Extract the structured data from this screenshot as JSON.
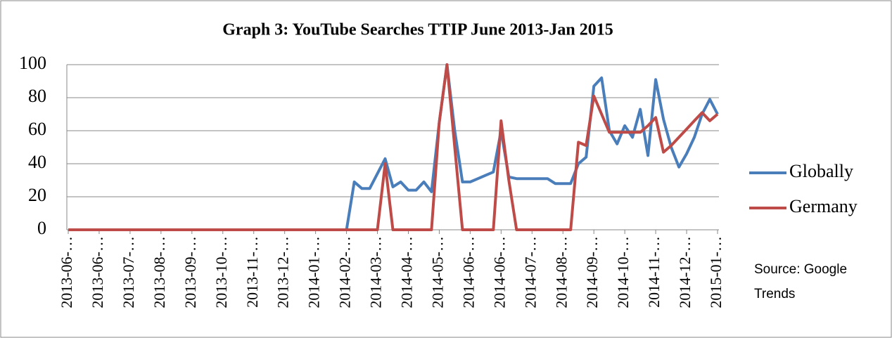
{
  "chart_data": {
    "type": "line",
    "title": "Graph 3: YouTube Searches TTIP June 2013-Jan 2015",
    "source": "Source: Google Trends",
    "categories": [
      "2013-06-…",
      null,
      null,
      null,
      "2013-06-…",
      null,
      null,
      null,
      "2013-07-…",
      null,
      null,
      null,
      "2013-08-…",
      null,
      null,
      null,
      "2013-09-…",
      null,
      null,
      null,
      "2013-10-…",
      null,
      null,
      null,
      "2013-11-…",
      null,
      null,
      null,
      "2013-12-…",
      null,
      null,
      null,
      "2014-01-…",
      null,
      null,
      null,
      "2014-02-…",
      null,
      null,
      null,
      "2014-03-…",
      null,
      null,
      null,
      "2014-04-…",
      null,
      null,
      null,
      "2014-05-…",
      null,
      null,
      null,
      "2014-06-…",
      null,
      null,
      null,
      "2014-06-…",
      null,
      null,
      null,
      "2014-07-…",
      null,
      null,
      null,
      "2014-08-…",
      null,
      null,
      null,
      "2014-09-…",
      null,
      null,
      null,
      "2014-10-…",
      null,
      null,
      null,
      "2014-11-…",
      null,
      null,
      null,
      "2014-12-…",
      null,
      null,
      null,
      "2015-01-…"
    ],
    "series": [
      {
        "name": "Globally",
        "color": "#4a7ebb",
        "values": [
          0,
          0,
          0,
          0,
          0,
          0,
          0,
          0,
          0,
          0,
          0,
          0,
          0,
          0,
          0,
          0,
          0,
          0,
          0,
          0,
          0,
          0,
          0,
          0,
          0,
          0,
          0,
          0,
          0,
          0,
          0,
          0,
          0,
          0,
          0,
          0,
          0,
          29,
          25,
          25,
          34,
          43,
          26,
          29,
          24,
          24,
          29,
          23,
          65,
          100,
          60,
          29,
          29,
          31,
          33,
          35,
          60,
          32,
          31,
          31,
          31,
          31,
          31,
          28,
          28,
          28,
          40,
          44,
          87,
          92,
          60,
          52,
          63,
          56,
          73,
          45,
          91,
          67,
          50,
          38,
          46,
          56,
          70,
          79,
          70
        ]
      },
      {
        "name": "Germany",
        "color": "#be4b48",
        "values": [
          0,
          0,
          0,
          0,
          0,
          0,
          0,
          0,
          0,
          0,
          0,
          0,
          0,
          0,
          0,
          0,
          0,
          0,
          0,
          0,
          0,
          0,
          0,
          0,
          0,
          0,
          0,
          0,
          0,
          0,
          0,
          0,
          0,
          0,
          0,
          0,
          0,
          0,
          0,
          0,
          0,
          40,
          0,
          0,
          0,
          0,
          0,
          0,
          65,
          100,
          50,
          0,
          0,
          0,
          0,
          0,
          66,
          30,
          0,
          0,
          0,
          0,
          0,
          0,
          0,
          0,
          53,
          51,
          81,
          70,
          59,
          59,
          59,
          59,
          59,
          63,
          68,
          47,
          51,
          56,
          61,
          66,
          71,
          66,
          70
        ]
      }
    ],
    "ylim": [
      0,
      100
    ],
    "yticks": [
      0,
      20,
      40,
      60,
      80,
      100
    ],
    "grid": true,
    "legend": "right"
  }
}
